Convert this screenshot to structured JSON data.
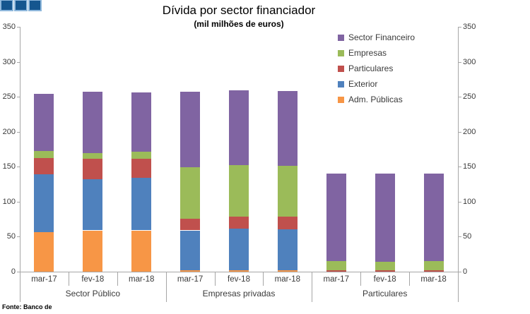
{
  "footer": {
    "source": "Fonte: Banco de"
  },
  "logo": {
    "square_fill": "#15568F",
    "square_border": "#8FB8DC",
    "square_count": 3
  },
  "chart_data": {
    "type": "bar",
    "stacked": true,
    "title": "Dívida por sector financiador",
    "subtitle": "(mil milhões de euros)",
    "grid": false,
    "legend_position": "inside-top-right",
    "groups": [
      "Sector Público",
      "Empresas privadas",
      "Particulares"
    ],
    "categories": [
      "mar-17",
      "fev-18",
      "mar-18",
      "mar-17",
      "fev-18",
      "mar-18",
      "mar-17",
      "fev-18",
      "mar-18"
    ],
    "series": [
      {
        "name": "Adm. Públicas",
        "color": "#F79646",
        "values": [
          56,
          59,
          59,
          2,
          2,
          2,
          0,
          0,
          0
        ]
      },
      {
        "name": "Exterior",
        "color": "#4F81BD",
        "values": [
          83,
          73,
          75,
          57,
          60,
          59,
          0,
          0,
          0
        ]
      },
      {
        "name": "Particulares",
        "color": "#C0504D",
        "values": [
          23,
          29,
          27,
          17,
          17,
          18,
          2,
          2,
          2
        ]
      },
      {
        "name": "Empresas",
        "color": "#9BBB59",
        "values": [
          10,
          8,
          10,
          73,
          73,
          72,
          13,
          12,
          13
        ]
      },
      {
        "name": "Sector Financeiro",
        "color": "#8064A2",
        "values": [
          82,
          88,
          85,
          108,
          107,
          107,
          125,
          126,
          125
        ]
      }
    ],
    "totals": [
      254,
      257,
      256,
      257,
      259,
      258,
      140,
      140,
      140
    ],
    "legend_order_top_to_bottom": [
      "Sector Financeiro",
      "Empresas",
      "Particulares",
      "Exterior",
      "Adm. Públicas"
    ],
    "y_axis": {
      "min": 0,
      "max": 350,
      "step": 50,
      "ticks": [
        0,
        50,
        100,
        150,
        200,
        250,
        300,
        350
      ],
      "dual": true
    }
  }
}
